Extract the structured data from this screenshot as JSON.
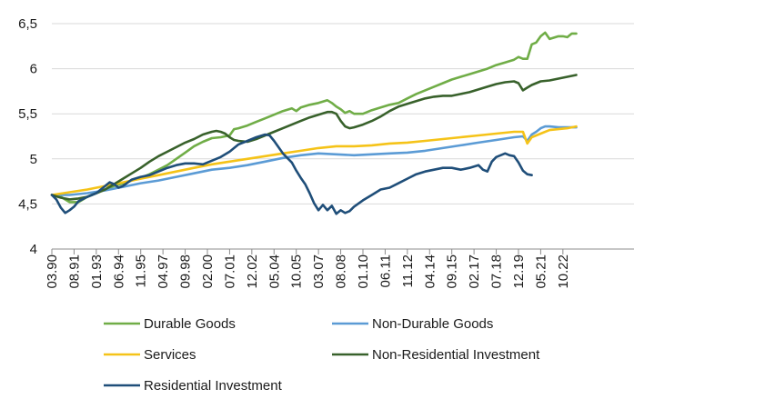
{
  "chart_data": {
    "type": "line",
    "title": "",
    "xlabel": "",
    "ylabel": "",
    "ylim": [
      4,
      6.5
    ],
    "yticks": [
      "4",
      "4,5",
      "5",
      "5,5",
      "6",
      "6,5"
    ],
    "ytick_values": [
      4,
      4.5,
      5,
      5.5,
      6,
      6.5
    ],
    "grid": "horizontal",
    "legend_position": "bottom",
    "x_start_index": 0,
    "x_end_index": 131,
    "x_ticks": [
      {
        "label": "03.90",
        "i": 0
      },
      {
        "label": "08.91",
        "i": 5
      },
      {
        "label": "01.93",
        "i": 10
      },
      {
        "label": "06.94",
        "i": 15
      },
      {
        "label": "11.95",
        "i": 20
      },
      {
        "label": "04.97",
        "i": 25
      },
      {
        "label": "09.98",
        "i": 30
      },
      {
        "label": "02.00",
        "i": 35
      },
      {
        "label": "07.01",
        "i": 40
      },
      {
        "label": "12.02",
        "i": 45
      },
      {
        "label": "05.04",
        "i": 50
      },
      {
        "label": "10.05",
        "i": 55
      },
      {
        "label": "03.07",
        "i": 60
      },
      {
        "label": "08.08",
        "i": 65
      },
      {
        "label": "01.10",
        "i": 70
      },
      {
        "label": "06.11",
        "i": 75
      },
      {
        "label": "11.12",
        "i": 80
      },
      {
        "label": "04.14",
        "i": 85
      },
      {
        "label": "09.15",
        "i": 90
      },
      {
        "label": "02.17",
        "i": 95
      },
      {
        "label": "07.18",
        "i": 100
      },
      {
        "label": "12.19",
        "i": 105
      },
      {
        "label": "05.21",
        "i": 110
      },
      {
        "label": "10.22",
        "i": 115
      }
    ],
    "series": [
      {
        "name": "Durable Goods",
        "color": "#70AD47",
        "points": [
          [
            0,
            4.6
          ],
          [
            2,
            4.58
          ],
          [
            4,
            4.52
          ],
          [
            6,
            4.52
          ],
          [
            8,
            4.58
          ],
          [
            10,
            4.62
          ],
          [
            12,
            4.66
          ],
          [
            14,
            4.7
          ],
          [
            16,
            4.73
          ],
          [
            18,
            4.76
          ],
          [
            20,
            4.79
          ],
          [
            22,
            4.83
          ],
          [
            24,
            4.88
          ],
          [
            26,
            4.93
          ],
          [
            28,
            5.0
          ],
          [
            30,
            5.07
          ],
          [
            32,
            5.14
          ],
          [
            34,
            5.19
          ],
          [
            36,
            5.23
          ],
          [
            38,
            5.24
          ],
          [
            40,
            5.26
          ],
          [
            41,
            5.33
          ],
          [
            42,
            5.34
          ],
          [
            44,
            5.37
          ],
          [
            46,
            5.41
          ],
          [
            48,
            5.45
          ],
          [
            50,
            5.49
          ],
          [
            52,
            5.53
          ],
          [
            54,
            5.56
          ],
          [
            55,
            5.53
          ],
          [
            56,
            5.57
          ],
          [
            58,
            5.6
          ],
          [
            60,
            5.62
          ],
          [
            62,
            5.65
          ],
          [
            63,
            5.62
          ],
          [
            64,
            5.58
          ],
          [
            65,
            5.55
          ],
          [
            66,
            5.51
          ],
          [
            67,
            5.53
          ],
          [
            68,
            5.5
          ],
          [
            70,
            5.5
          ],
          [
            72,
            5.54
          ],
          [
            74,
            5.57
          ],
          [
            76,
            5.6
          ],
          [
            78,
            5.62
          ],
          [
            80,
            5.67
          ],
          [
            82,
            5.72
          ],
          [
            84,
            5.76
          ],
          [
            86,
            5.8
          ],
          [
            88,
            5.84
          ],
          [
            90,
            5.88
          ],
          [
            92,
            5.91
          ],
          [
            94,
            5.94
          ],
          [
            96,
            5.97
          ],
          [
            98,
            6.0
          ],
          [
            100,
            6.04
          ],
          [
            102,
            6.07
          ],
          [
            104,
            6.1
          ],
          [
            105,
            6.13
          ],
          [
            106,
            6.11
          ],
          [
            107,
            6.11
          ],
          [
            108,
            6.27
          ],
          [
            109,
            6.29
          ],
          [
            110,
            6.36
          ],
          [
            111,
            6.4
          ],
          [
            112,
            6.33
          ],
          [
            114,
            6.36
          ],
          [
            115,
            6.36
          ],
          [
            116,
            6.35
          ],
          [
            117,
            6.39
          ],
          [
            118,
            6.39
          ]
        ]
      },
      {
        "name": "Non-Durable Goods",
        "color": "#5B9BD5",
        "points": [
          [
            0,
            4.6
          ],
          [
            4,
            4.6
          ],
          [
            8,
            4.62
          ],
          [
            12,
            4.65
          ],
          [
            16,
            4.69
          ],
          [
            20,
            4.73
          ],
          [
            24,
            4.76
          ],
          [
            28,
            4.8
          ],
          [
            32,
            4.84
          ],
          [
            36,
            4.88
          ],
          [
            40,
            4.9
          ],
          [
            44,
            4.93
          ],
          [
            48,
            4.97
          ],
          [
            52,
            5.01
          ],
          [
            56,
            5.04
          ],
          [
            60,
            5.06
          ],
          [
            64,
            5.05
          ],
          [
            68,
            5.04
          ],
          [
            72,
            5.05
          ],
          [
            76,
            5.06
          ],
          [
            80,
            5.07
          ],
          [
            84,
            5.09
          ],
          [
            88,
            5.12
          ],
          [
            92,
            5.15
          ],
          [
            96,
            5.18
          ],
          [
            100,
            5.21
          ],
          [
            104,
            5.24
          ],
          [
            106,
            5.25
          ],
          [
            107,
            5.2
          ],
          [
            108,
            5.27
          ],
          [
            109,
            5.3
          ],
          [
            110,
            5.34
          ],
          [
            111,
            5.36
          ],
          [
            112,
            5.36
          ],
          [
            114,
            5.35
          ],
          [
            116,
            5.35
          ],
          [
            118,
            5.35
          ]
        ]
      },
      {
        "name": "Services",
        "color": "#F5C318",
        "points": [
          [
            0,
            4.6
          ],
          [
            4,
            4.63
          ],
          [
            8,
            4.66
          ],
          [
            12,
            4.7
          ],
          [
            16,
            4.74
          ],
          [
            20,
            4.78
          ],
          [
            24,
            4.82
          ],
          [
            28,
            4.86
          ],
          [
            32,
            4.9
          ],
          [
            36,
            4.94
          ],
          [
            40,
            4.97
          ],
          [
            44,
            5.0
          ],
          [
            48,
            5.03
          ],
          [
            52,
            5.06
          ],
          [
            56,
            5.09
          ],
          [
            60,
            5.12
          ],
          [
            64,
            5.14
          ],
          [
            68,
            5.14
          ],
          [
            72,
            5.15
          ],
          [
            76,
            5.17
          ],
          [
            80,
            5.18
          ],
          [
            84,
            5.2
          ],
          [
            88,
            5.22
          ],
          [
            92,
            5.24
          ],
          [
            96,
            5.26
          ],
          [
            100,
            5.28
          ],
          [
            104,
            5.3
          ],
          [
            106,
            5.3
          ],
          [
            107,
            5.17
          ],
          [
            108,
            5.24
          ],
          [
            110,
            5.28
          ],
          [
            112,
            5.32
          ],
          [
            114,
            5.33
          ],
          [
            116,
            5.34
          ],
          [
            118,
            5.36
          ]
        ]
      },
      {
        "name": "Non-Residential Investment",
        "color": "#38612B",
        "points": [
          [
            0,
            4.6
          ],
          [
            2,
            4.57
          ],
          [
            4,
            4.55
          ],
          [
            6,
            4.56
          ],
          [
            8,
            4.58
          ],
          [
            10,
            4.62
          ],
          [
            12,
            4.66
          ],
          [
            14,
            4.72
          ],
          [
            16,
            4.78
          ],
          [
            18,
            4.84
          ],
          [
            20,
            4.9
          ],
          [
            22,
            4.97
          ],
          [
            24,
            5.03
          ],
          [
            26,
            5.08
          ],
          [
            28,
            5.13
          ],
          [
            30,
            5.18
          ],
          [
            32,
            5.22
          ],
          [
            34,
            5.27
          ],
          [
            36,
            5.3
          ],
          [
            37,
            5.31
          ],
          [
            38,
            5.3
          ],
          [
            39,
            5.28
          ],
          [
            40,
            5.24
          ],
          [
            41,
            5.21
          ],
          [
            42,
            5.2
          ],
          [
            44,
            5.19
          ],
          [
            46,
            5.22
          ],
          [
            48,
            5.26
          ],
          [
            50,
            5.3
          ],
          [
            52,
            5.34
          ],
          [
            54,
            5.38
          ],
          [
            56,
            5.42
          ],
          [
            58,
            5.46
          ],
          [
            60,
            5.49
          ],
          [
            62,
            5.52
          ],
          [
            63,
            5.52
          ],
          [
            64,
            5.5
          ],
          [
            65,
            5.42
          ],
          [
            66,
            5.36
          ],
          [
            67,
            5.34
          ],
          [
            68,
            5.35
          ],
          [
            70,
            5.38
          ],
          [
            72,
            5.42
          ],
          [
            74,
            5.47
          ],
          [
            76,
            5.53
          ],
          [
            78,
            5.58
          ],
          [
            80,
            5.61
          ],
          [
            82,
            5.64
          ],
          [
            84,
            5.67
          ],
          [
            86,
            5.69
          ],
          [
            88,
            5.7
          ],
          [
            90,
            5.7
          ],
          [
            92,
            5.72
          ],
          [
            94,
            5.74
          ],
          [
            96,
            5.77
          ],
          [
            98,
            5.8
          ],
          [
            100,
            5.83
          ],
          [
            102,
            5.85
          ],
          [
            104,
            5.86
          ],
          [
            105,
            5.84
          ],
          [
            106,
            5.76
          ],
          [
            107,
            5.79
          ],
          [
            108,
            5.82
          ],
          [
            110,
            5.86
          ],
          [
            112,
            5.87
          ],
          [
            114,
            5.89
          ],
          [
            116,
            5.91
          ],
          [
            118,
            5.93
          ]
        ]
      },
      {
        "name": "Residential Investment",
        "color": "#1F4E79",
        "points": [
          [
            0,
            4.6
          ],
          [
            1,
            4.55
          ],
          [
            2,
            4.46
          ],
          [
            3,
            4.4
          ],
          [
            4,
            4.43
          ],
          [
            5,
            4.47
          ],
          [
            6,
            4.53
          ],
          [
            8,
            4.58
          ],
          [
            10,
            4.62
          ],
          [
            12,
            4.7
          ],
          [
            13,
            4.74
          ],
          [
            14,
            4.72
          ],
          [
            15,
            4.68
          ],
          [
            16,
            4.7
          ],
          [
            18,
            4.77
          ],
          [
            20,
            4.8
          ],
          [
            22,
            4.82
          ],
          [
            24,
            4.86
          ],
          [
            26,
            4.9
          ],
          [
            28,
            4.93
          ],
          [
            30,
            4.95
          ],
          [
            32,
            4.95
          ],
          [
            34,
            4.94
          ],
          [
            36,
            4.98
          ],
          [
            38,
            5.02
          ],
          [
            40,
            5.08
          ],
          [
            41,
            5.12
          ],
          [
            42,
            5.16
          ],
          [
            44,
            5.2
          ],
          [
            46,
            5.24
          ],
          [
            48,
            5.27
          ],
          [
            49,
            5.26
          ],
          [
            50,
            5.2
          ],
          [
            52,
            5.06
          ],
          [
            54,
            4.96
          ],
          [
            55,
            4.87
          ],
          [
            56,
            4.79
          ],
          [
            57,
            4.72
          ],
          [
            58,
            4.62
          ],
          [
            59,
            4.51
          ],
          [
            60,
            4.43
          ],
          [
            61,
            4.49
          ],
          [
            62,
            4.43
          ],
          [
            63,
            4.48
          ],
          [
            64,
            4.39
          ],
          [
            65,
            4.43
          ],
          [
            66,
            4.4
          ],
          [
            67,
            4.42
          ],
          [
            68,
            4.47
          ],
          [
            70,
            4.54
          ],
          [
            72,
            4.6
          ],
          [
            74,
            4.66
          ],
          [
            76,
            4.68
          ],
          [
            78,
            4.73
          ],
          [
            80,
            4.78
          ],
          [
            82,
            4.83
          ],
          [
            84,
            4.86
          ],
          [
            86,
            4.88
          ],
          [
            88,
            4.9
          ],
          [
            90,
            4.9
          ],
          [
            92,
            4.88
          ],
          [
            94,
            4.9
          ],
          [
            96,
            4.93
          ],
          [
            97,
            4.88
          ],
          [
            98,
            4.86
          ],
          [
            99,
            4.97
          ],
          [
            100,
            5.02
          ],
          [
            102,
            5.06
          ],
          [
            103,
            5.04
          ],
          [
            104,
            5.03
          ],
          [
            105,
            4.96
          ],
          [
            106,
            4.87
          ],
          [
            107,
            4.83
          ],
          [
            108,
            4.82
          ]
        ]
      }
    ]
  }
}
